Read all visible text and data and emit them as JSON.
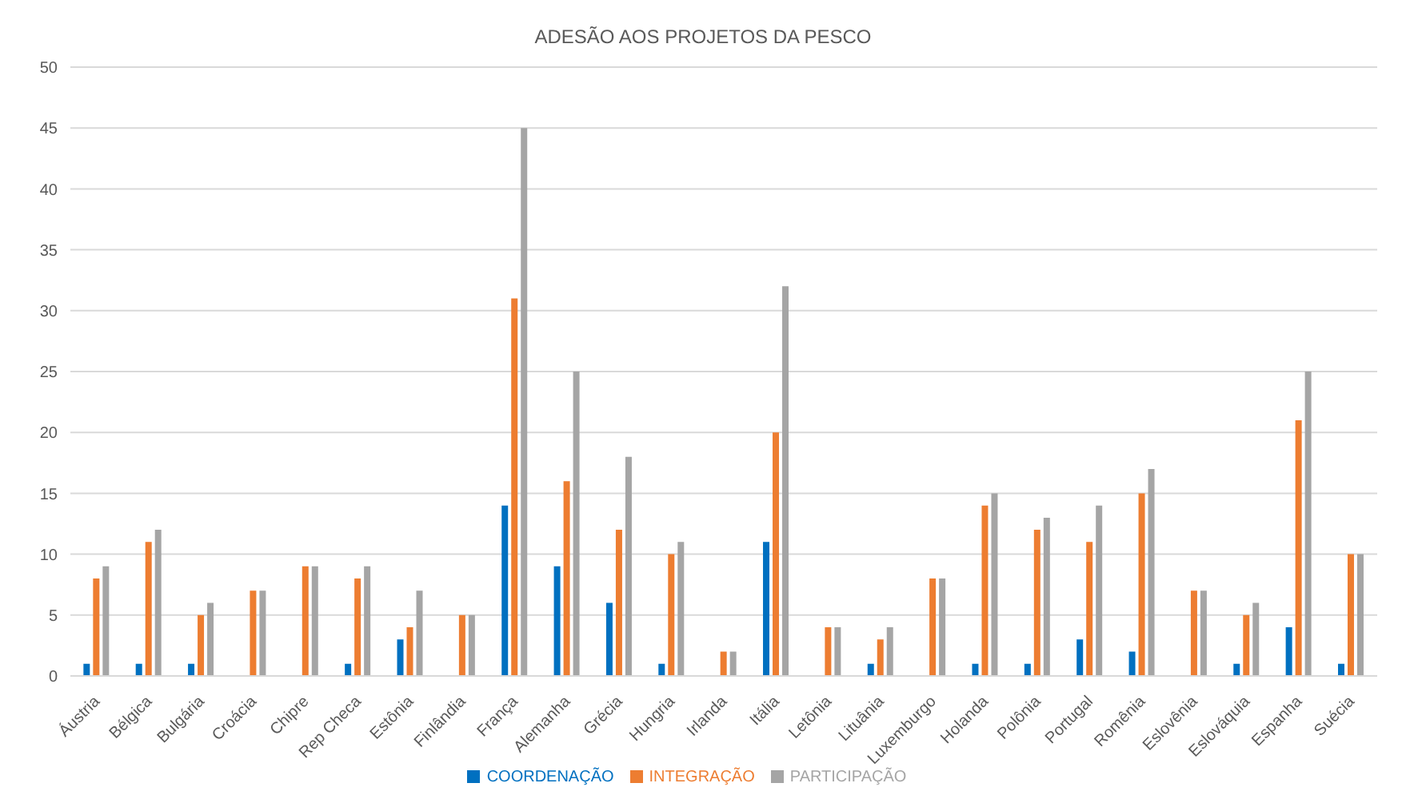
{
  "chart_data": {
    "type": "bar",
    "title": "ADESÃO AOS PROJETOS DA PESCO",
    "categories": [
      "Áustria",
      "Bélgica",
      "Bulgária",
      "Croácia",
      "Chipre",
      "Rep Checa",
      "Estônia",
      "Finlândia",
      "França",
      "Alemanha",
      "Grécia",
      "Hungria",
      "Irlanda",
      "Itália",
      "Letônia",
      "Lituânia",
      "Luxemburgo",
      "Holanda",
      "Polônia",
      "Portugal",
      "Romênia",
      "Eslovênia",
      "Eslováquia",
      "Espanha",
      "Suécia"
    ],
    "series": [
      {
        "name": "COORDENAÇÃO",
        "color": "#0070c0",
        "values": [
          1,
          1,
          1,
          0,
          0,
          1,
          3,
          0,
          14,
          9,
          6,
          1,
          0,
          11,
          0,
          1,
          0,
          1,
          1,
          3,
          2,
          0,
          1,
          4,
          1
        ]
      },
      {
        "name": "INTEGRAÇÃO",
        "color": "#ed7d31",
        "values": [
          8,
          11,
          5,
          7,
          9,
          8,
          4,
          5,
          31,
          16,
          12,
          10,
          2,
          20,
          4,
          3,
          8,
          14,
          12,
          11,
          15,
          7,
          5,
          21,
          10
        ]
      },
      {
        "name": "PARTICIPAÇÃO",
        "color": "#a5a5a5",
        "values": [
          9,
          12,
          6,
          7,
          9,
          9,
          7,
          5,
          45,
          25,
          18,
          11,
          2,
          32,
          4,
          4,
          8,
          15,
          13,
          14,
          17,
          7,
          6,
          25,
          10
        ]
      }
    ],
    "ylim": [
      0,
      50
    ],
    "yticks": [
      0,
      5,
      10,
      15,
      20,
      25,
      30,
      35,
      40,
      45,
      50
    ],
    "grid": "y",
    "legend": "bottom"
  }
}
